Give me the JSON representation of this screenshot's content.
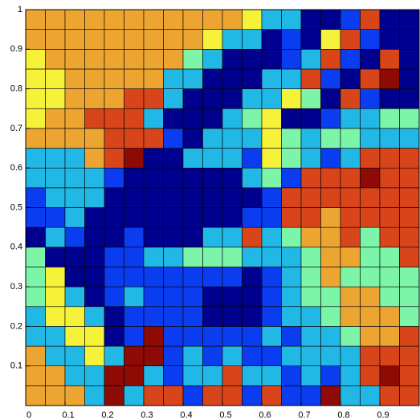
{
  "chart_data": {
    "type": "heatmap",
    "xlim": [
      0,
      1
    ],
    "ylim": [
      0,
      1
    ],
    "xticks": [
      0,
      0.1,
      0.2,
      0.3,
      0.4,
      0.5,
      0.6,
      0.7,
      0.8,
      0.9
    ],
    "yticks": [
      0.1,
      0.2,
      0.3,
      0.4,
      0.5,
      0.6,
      0.7,
      0.8,
      0.9,
      1
    ],
    "colormap": [
      "#00008f",
      "#0a3cf0",
      "#22b8e6",
      "#7cf5a8",
      "#f6f23a",
      "#eda532",
      "#d9451a",
      "#8e0b05"
    ],
    "z": [
      [
        6,
        6,
        6,
        3,
        8,
        3,
        7,
        7,
        2,
        7,
        7,
        2,
        7,
        2,
        2,
        8,
        3,
        3,
        7,
        7
      ],
      [
        6,
        6,
        3,
        3,
        8,
        8,
        3,
        2,
        3,
        3,
        7,
        3,
        3,
        2,
        3,
        2,
        3,
        7,
        8,
        7
      ],
      [
        6,
        3,
        3,
        5,
        3,
        8,
        8,
        2,
        3,
        2,
        3,
        2,
        2,
        3,
        3,
        3,
        3,
        7,
        7,
        7
      ],
      [
        3,
        3,
        5,
        5,
        1,
        2,
        8,
        2,
        2,
        2,
        2,
        2,
        3,
        2,
        3,
        3,
        4,
        6,
        6,
        7
      ],
      [
        3,
        5,
        5,
        3,
        1,
        2,
        2,
        2,
        2,
        1,
        1,
        1,
        2,
        3,
        3,
        4,
        6,
        6,
        6,
        4
      ],
      [
        4,
        5,
        3,
        1,
        2,
        3,
        2,
        2,
        2,
        1,
        1,
        1,
        2,
        3,
        4,
        4,
        6,
        6,
        4,
        4
      ],
      [
        4,
        5,
        1,
        1,
        2,
        2,
        2,
        2,
        2,
        2,
        2,
        1,
        2,
        3,
        4,
        6,
        4,
        4,
        4,
        4
      ],
      [
        4,
        1,
        1,
        1,
        2,
        2,
        3,
        3,
        4,
        4,
        4,
        3,
        3,
        3,
        4,
        6,
        6,
        4,
        4,
        7
      ],
      [
        1,
        3,
        2,
        1,
        1,
        2,
        1,
        1,
        1,
        3,
        3,
        7,
        3,
        4,
        6,
        6,
        7,
        4,
        7,
        7
      ],
      [
        2,
        2,
        3,
        1,
        1,
        1,
        1,
        1,
        1,
        1,
        1,
        2,
        2,
        7,
        7,
        6,
        7,
        7,
        7,
        7
      ],
      [
        2,
        3,
        3,
        3,
        1,
        1,
        1,
        1,
        1,
        1,
        1,
        1,
        2,
        7,
        7,
        7,
        7,
        7,
        7,
        7
      ],
      [
        3,
        3,
        3,
        3,
        2,
        1,
        1,
        1,
        1,
        1,
        1,
        3,
        4,
        2,
        7,
        7,
        7,
        8,
        7,
        7
      ],
      [
        3,
        3,
        3,
        6,
        7,
        8,
        1,
        1,
        3,
        3,
        3,
        2,
        5,
        4,
        3,
        2,
        3,
        7,
        7,
        7
      ],
      [
        6,
        6,
        6,
        6,
        7,
        7,
        7,
        2,
        1,
        3,
        3,
        3,
        5,
        4,
        3,
        4,
        4,
        3,
        3,
        3
      ],
      [
        5,
        6,
        6,
        7,
        7,
        7,
        3,
        1,
        1,
        1,
        3,
        4,
        5,
        1,
        1,
        2,
        3,
        3,
        4,
        4
      ],
      [
        5,
        5,
        6,
        6,
        6,
        7,
        7,
        3,
        1,
        1,
        1,
        3,
        3,
        5,
        4,
        1,
        7,
        2,
        1,
        1
      ],
      [
        5,
        5,
        6,
        6,
        6,
        6,
        6,
        3,
        3,
        1,
        1,
        1,
        3,
        3,
        7,
        2,
        1,
        7,
        8,
        1
      ],
      [
        5,
        6,
        6,
        6,
        6,
        6,
        6,
        6,
        4,
        3,
        1,
        1,
        1,
        2,
        3,
        7,
        2,
        1,
        7,
        1
      ],
      [
        6,
        6,
        6,
        6,
        6,
        6,
        6,
        6,
        6,
        5,
        3,
        3,
        1,
        2,
        1,
        5,
        7,
        2,
        1,
        1
      ],
      [
        6,
        6,
        6,
        6,
        6,
        6,
        6,
        6,
        6,
        6,
        6,
        5,
        3,
        3,
        1,
        1,
        2,
        7,
        1,
        1
      ]
    ]
  }
}
